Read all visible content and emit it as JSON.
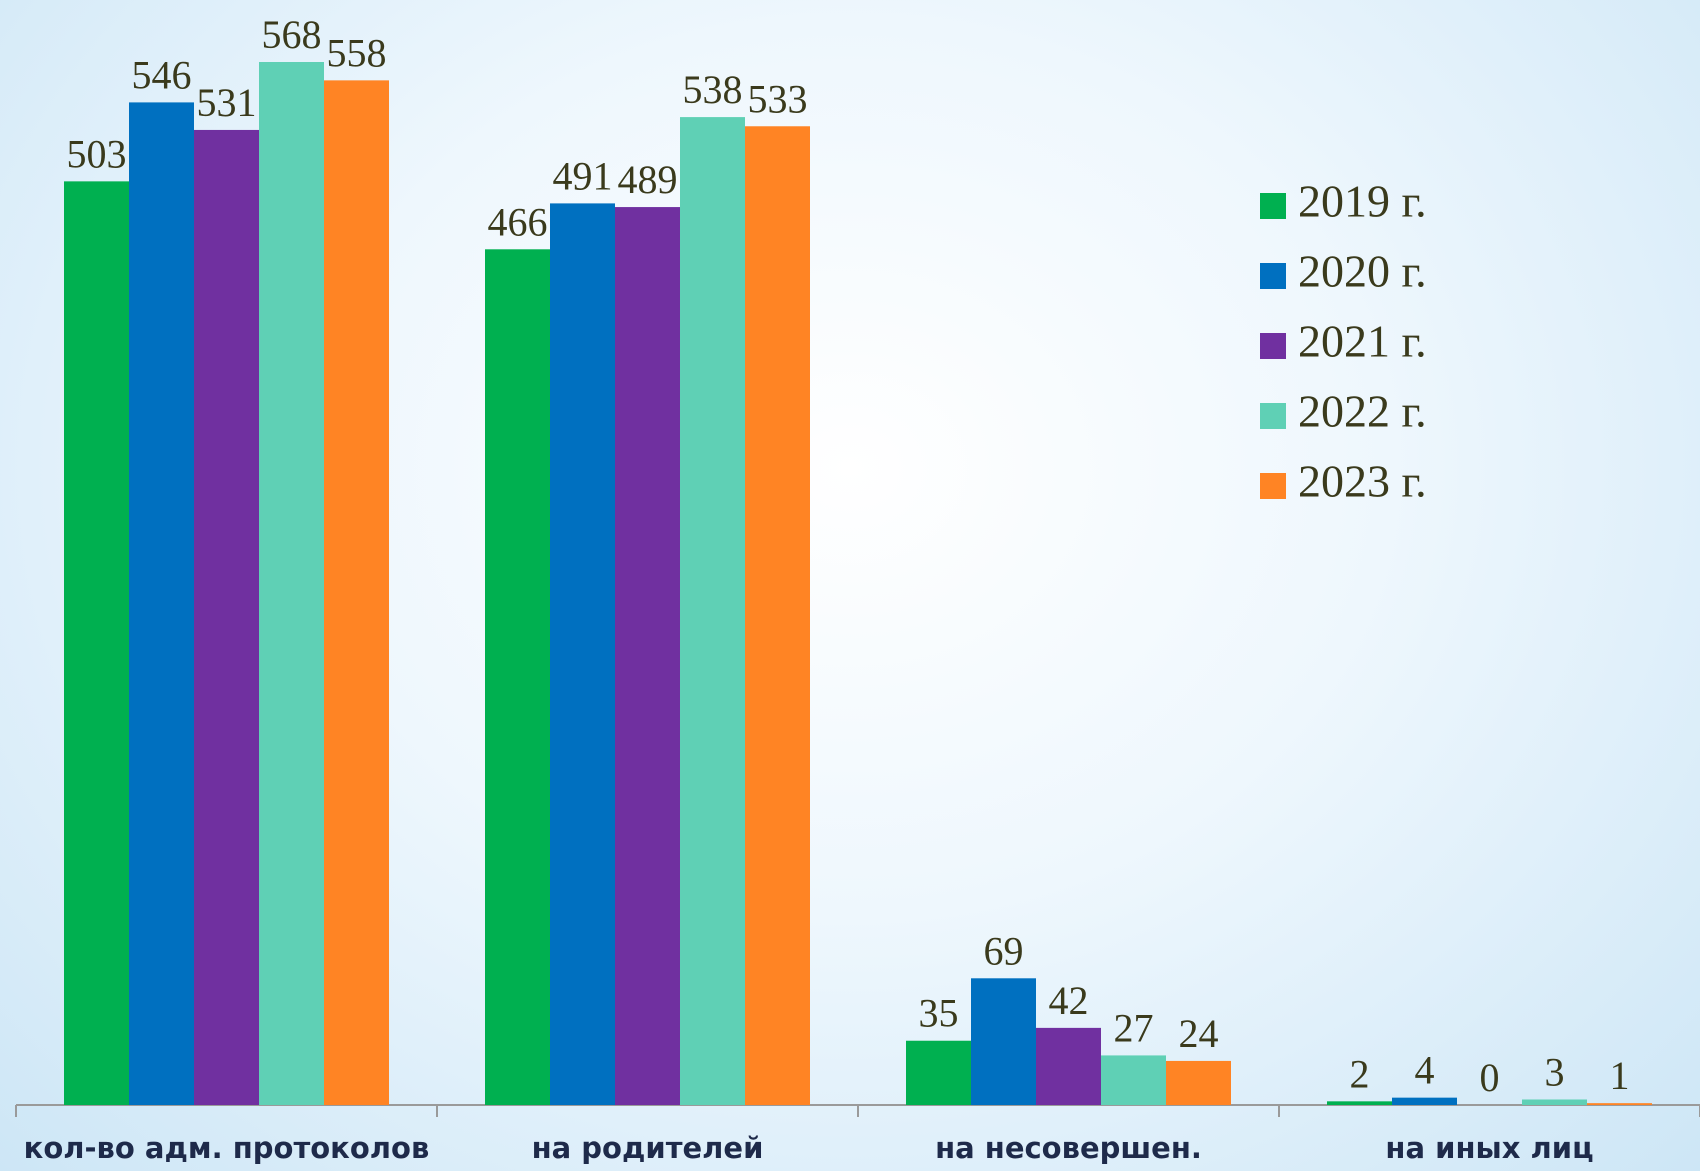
{
  "chart_data": {
    "type": "bar",
    "categories": [
      "кол-во адм. протоколов",
      "на родителей",
      "на несовершен.",
      "на иных лиц"
    ],
    "series": [
      {
        "name": "2019 г.",
        "color": "#00b050",
        "values": [
          503,
          466,
          35,
          2
        ]
      },
      {
        "name": "2020 г.",
        "color": "#0070c0",
        "values": [
          546,
          491,
          69,
          4
        ]
      },
      {
        "name": "2021 г.",
        "color": "#7030a0",
        "values": [
          531,
          489,
          42,
          0
        ]
      },
      {
        "name": "2022 г.",
        "color": "#5fd0b5",
        "values": [
          568,
          538,
          27,
          3
        ]
      },
      {
        "name": "2023 г.",
        "color": "#ff8424",
        "values": [
          558,
          533,
          24,
          1
        ]
      }
    ],
    "legend": "right"
  }
}
